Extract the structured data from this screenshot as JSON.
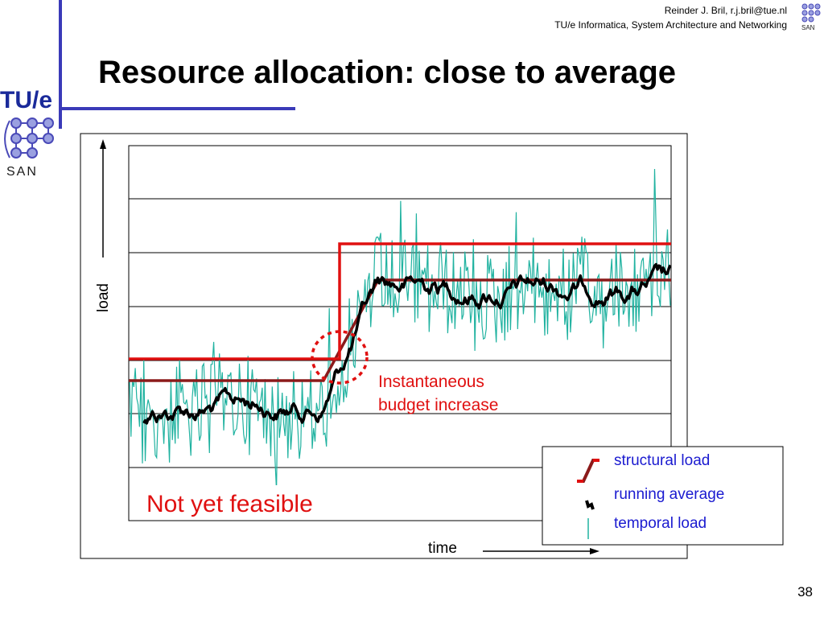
{
  "header": {
    "author": "Reinder J. Bril, r.j.bril@tue.nl",
    "department": "TU/e Informatica, System Architecture and Networking"
  },
  "logo": {
    "institution": "TU/e",
    "group": "SAN"
  },
  "slide": {
    "title": "Resource allocation: close to average",
    "page_number": "38"
  },
  "chart_data": {
    "type": "line",
    "xlabel": "time",
    "ylabel": "load",
    "grid": true,
    "legend_placement": "bottom-right",
    "annotations": [
      {
        "text": [
          "Instantaneous",
          "budget increase"
        ],
        "color": "#e01010"
      },
      {
        "text": "Not yet feasible",
        "color": "#e01010"
      }
    ],
    "series": [
      {
        "name": "structural load",
        "color": "#8b1a1a"
      },
      {
        "name": "running average",
        "color": "#000000"
      },
      {
        "name": "temporal load",
        "color": "#20b2a0"
      }
    ],
    "budget_line_color": "#e01010",
    "colors": {
      "accent": "#3a3ab8",
      "annotation": "#e01010",
      "legend_text": "#1a1ad0"
    }
  }
}
